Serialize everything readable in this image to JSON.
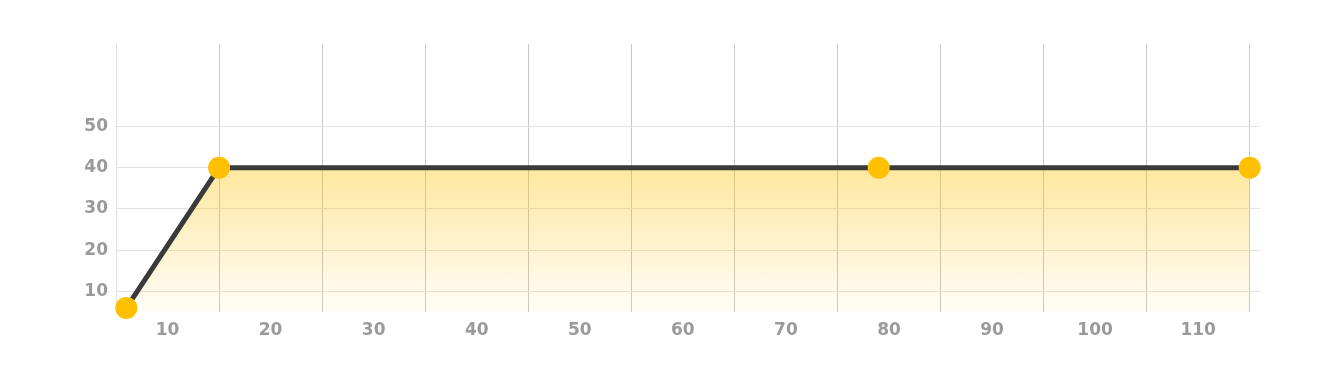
{
  "chart_data": {
    "type": "area",
    "x": [
      6,
      15,
      79,
      115
    ],
    "series": [
      {
        "color": "#3a3a3a",
        "colors": [
          "#ffc000",
          "#ffc000",
          "#ffc000",
          "#ffc000"
        ],
        "values": [
          6,
          40,
          40,
          40
        ]
      }
    ],
    "xlim": [
      5,
      116
    ],
    "xticks": [
      10,
      {
        "value": 15,
        "label": null
      },
      20,
      {
        "value": 25,
        "label": null
      },
      30,
      {
        "value": 35,
        "label": null
      },
      40,
      {
        "value": 45,
        "label": null
      },
      50,
      {
        "value": 55,
        "label": null
      },
      60,
      {
        "value": 65,
        "label": null
      },
      70,
      {
        "value": 75,
        "label": null
      },
      80,
      {
        "value": 85,
        "label": null
      },
      90,
      {
        "value": 95,
        "label": null
      },
      100,
      {
        "value": 105,
        "label": null
      },
      110,
      {
        "value": 115,
        "label": null
      }
    ],
    "ylim": [
      5,
      70
    ],
    "yticks": [
      10,
      20,
      30,
      40,
      50
    ],
    "grid": true,
    "marker": "circle"
  }
}
